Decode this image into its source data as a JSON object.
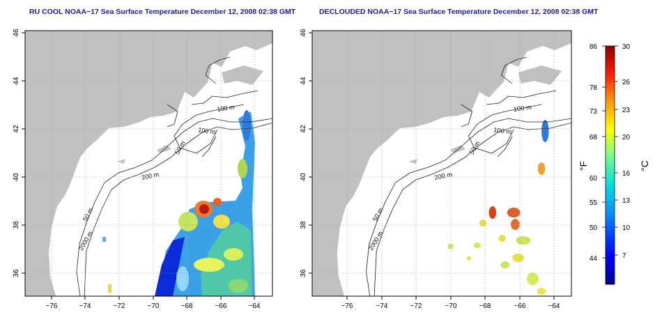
{
  "panels": [
    {
      "title": "RU COOL NOAA−17 Sea Surface Temperature December 12, 2008 02:38 GMT",
      "contour_labels": [
        "100 m",
        "100 m",
        "50 m",
        "200 m",
        "50 m",
        "2000 m"
      ]
    },
    {
      "title": "DECLOUDED NOAA−17 Sea Surface Temperature December 12, 2008 02:38 GMT",
      "contour_labels": [
        "100 m",
        "100 m",
        "50 m",
        "200 m",
        "50 m",
        "2000 m"
      ]
    }
  ],
  "axes": {
    "x_ticks": [
      "−76",
      "−74",
      "−72",
      "−70",
      "−68",
      "−66",
      "−64"
    ],
    "y_ticks": [
      "46",
      "44",
      "42",
      "40",
      "38",
      "36"
    ]
  },
  "colorbar": {
    "fahrenheit_label": "°F",
    "celsius_label": "°C",
    "fahrenheit_ticks": [
      "86",
      "78",
      "73",
      "68",
      "60",
      "55",
      "50",
      "44"
    ],
    "celsius_ticks": [
      "30",
      "26",
      "23",
      "20",
      "16",
      "13",
      "10",
      "7"
    ]
  },
  "colors": {
    "land": "#c0c0c0",
    "title": "#1a1aa6",
    "grid": "#a8a8a8"
  }
}
